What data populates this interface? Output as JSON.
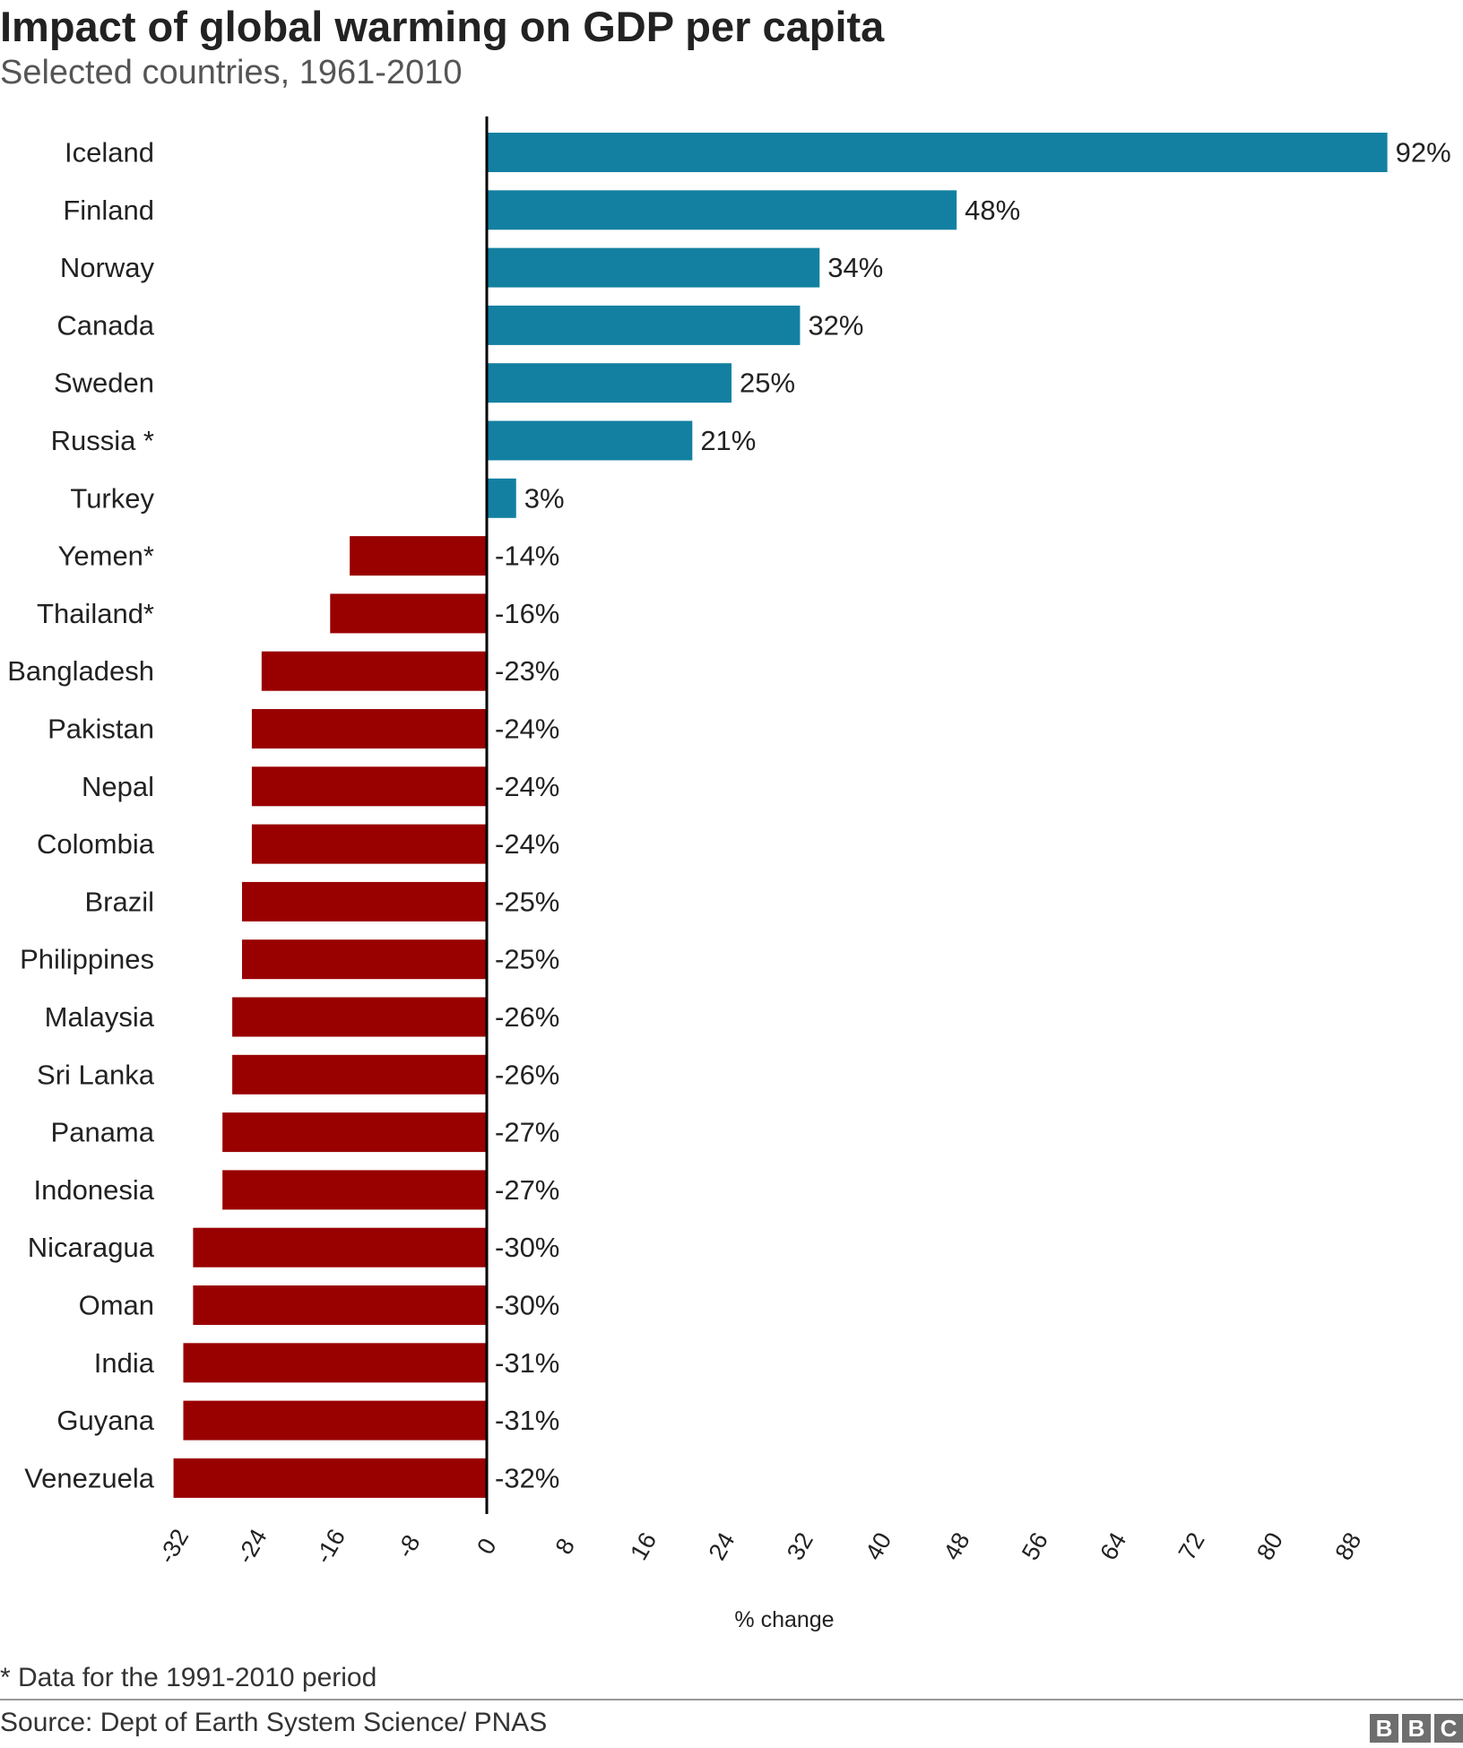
{
  "header": {
    "title": "Impact of global warming on GDP per capita",
    "subtitle": "Selected countries, 1961-2010"
  },
  "footer": {
    "footnote": "* Data for the 1991-2010 period",
    "source": "Source: Dept of Earth System Science/ PNAS",
    "logo": [
      "B",
      "B",
      "C"
    ]
  },
  "colors": {
    "positive": "#1380A1",
    "negative": "#990000",
    "text": "#222222",
    "axis_line": "#000000"
  },
  "chart_data": {
    "type": "bar",
    "orientation": "horizontal",
    "title": "Impact of global warming on GDP per capita",
    "subtitle": "Selected countries, 1961-2010",
    "xlabel": "% change",
    "ylabel": "",
    "xlim": [
      -32,
      92
    ],
    "xticks": [
      -32,
      -24,
      -16,
      -8,
      0,
      8,
      16,
      24,
      32,
      40,
      48,
      56,
      64,
      72,
      80,
      88
    ],
    "grid": false,
    "legend": "none",
    "categories": [
      "Iceland",
      "Finland",
      "Norway",
      "Canada",
      "Sweden",
      "Russia *",
      "Turkey",
      "Yemen*",
      "Thailand*",
      "Bangladesh",
      "Pakistan",
      "Nepal",
      "Colombia",
      "Brazil",
      "Philippines",
      "Malaysia",
      "Sri Lanka",
      "Panama",
      "Indonesia",
      "Nicaragua",
      "Oman",
      "India",
      "Guyana",
      "Venezuela"
    ],
    "values": [
      92,
      48,
      34,
      32,
      25,
      21,
      3,
      -14,
      -16,
      -23,
      -24,
      -24,
      -24,
      -25,
      -25,
      -26,
      -26,
      -27,
      -27,
      -30,
      -30,
      -31,
      -31,
      -32
    ],
    "data_labels": [
      "92%",
      "48%",
      "34%",
      "32%",
      "25%",
      "21%",
      "3%",
      "-14%",
      "-16%",
      "-23%",
      "-24%",
      "-24%",
      "-24%",
      "-25%",
      "-25%",
      "-26%",
      "-26%",
      "-27%",
      "-27%",
      "-30%",
      "-30%",
      "-31%",
      "-31%",
      "-32%"
    ]
  }
}
